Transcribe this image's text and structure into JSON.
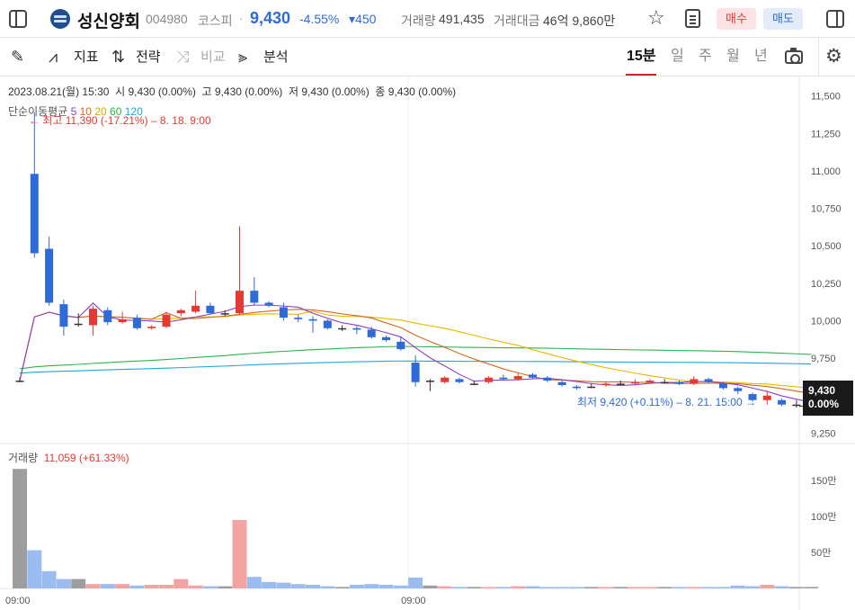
{
  "header": {
    "name": "성신양회",
    "code": "004980",
    "market": "코스피",
    "separator": "·",
    "price": "9,430",
    "change_pct": "-4.55%",
    "change_abs": "▾450",
    "volume_label": "거래량",
    "volume_value": "491,435",
    "amount_label": "거래대금",
    "amount_value": "46억 9,860만",
    "buy_label": "매수",
    "sell_label": "매도"
  },
  "toolbar": {
    "indicator_label": "지표",
    "strategy_label": "전략",
    "compare_label": "비교",
    "analysis_label": "분석",
    "periods": [
      "15분",
      "일",
      "주",
      "월",
      "년"
    ],
    "active_period": "15분"
  },
  "colors": {
    "up": "#e53935",
    "down": "#2e6bd6",
    "ma5": "#8e3ec7",
    "ma10": "#d2691e",
    "ma20": "#e6b800",
    "ma60": "#2db34a",
    "ma120": "#1fa6d6"
  },
  "chart_data": {
    "type": "candlestick",
    "info_line": "2023.08.21(월) 15:30  시 9,430 (0.00%)  고 9,430 (0.00%)  저 9,430 (0.00%)  종 9,430 (0.00%)",
    "ma_legend": {
      "label": "단순이동평균",
      "periods": [
        "5",
        "10",
        "20",
        "60",
        "120"
      ]
    },
    "high_annotation": "← 최고 11,390 (-17.21%) – 8. 18. 9:00",
    "low_annotation": "최저 9,420 (+0.11%) – 8. 21. 15:00 →",
    "price_axis": [
      "11,500",
      "11,250",
      "11,000",
      "10,750",
      "10,500",
      "10,250",
      "10,000",
      "9,750",
      "9,250"
    ],
    "ylim": [
      9180,
      11570
    ],
    "current_price": "9,430",
    "current_change": "0.00%",
    "volume_legend": {
      "label": "거래량",
      "value": "11,059 (+61.33%)"
    },
    "volume_axis": [
      "150만",
      "100만",
      "50만"
    ],
    "volume_axis_values": [
      1500000,
      1000000,
      500000
    ],
    "x_ticks": [
      {
        "index": 0,
        "label": "09:00"
      },
      {
        "index": 27,
        "label": "09:00"
      }
    ],
    "candles": [
      {
        "o": 9600,
        "h": 9620,
        "l": 9590,
        "c": 9600
      },
      {
        "o": 10980,
        "h": 11390,
        "l": 10420,
        "c": 10450
      },
      {
        "o": 10480,
        "h": 10560,
        "l": 10100,
        "c": 10120
      },
      {
        "o": 10110,
        "h": 10140,
        "l": 9900,
        "c": 9960
      },
      {
        "o": 9980,
        "h": 10050,
        "l": 9960,
        "c": 9980
      },
      {
        "o": 9970,
        "h": 10100,
        "l": 9900,
        "c": 10080
      },
      {
        "o": 10070,
        "h": 10090,
        "l": 9970,
        "c": 9990
      },
      {
        "o": 9990,
        "h": 10060,
        "l": 9980,
        "c": 10010
      },
      {
        "o": 10020,
        "h": 10040,
        "l": 9940,
        "c": 9950
      },
      {
        "o": 9950,
        "h": 9970,
        "l": 9940,
        "c": 9960
      },
      {
        "o": 9960,
        "h": 10060,
        "l": 9950,
        "c": 10040
      },
      {
        "o": 10050,
        "h": 10080,
        "l": 10030,
        "c": 10070
      },
      {
        "o": 10060,
        "h": 10200,
        "l": 10050,
        "c": 10100
      },
      {
        "o": 10100,
        "h": 10120,
        "l": 10040,
        "c": 10050
      },
      {
        "o": 10050,
        "h": 10070,
        "l": 10030,
        "c": 10050
      },
      {
        "o": 10050,
        "h": 10630,
        "l": 10040,
        "c": 10200
      },
      {
        "o": 10200,
        "h": 10290,
        "l": 10100,
        "c": 10120
      },
      {
        "o": 10120,
        "h": 10130,
        "l": 10090,
        "c": 10100
      },
      {
        "o": 10090,
        "h": 10120,
        "l": 10000,
        "c": 10020
      },
      {
        "o": 10020,
        "h": 10040,
        "l": 9990,
        "c": 10010
      },
      {
        "o": 10010,
        "h": 10030,
        "l": 9920,
        "c": 10000
      },
      {
        "o": 10000,
        "h": 10010,
        "l": 9940,
        "c": 9950
      },
      {
        "o": 9950,
        "h": 9970,
        "l": 9930,
        "c": 9950
      },
      {
        "o": 9950,
        "h": 9970,
        "l": 9910,
        "c": 9940
      },
      {
        "o": 9940,
        "h": 9960,
        "l": 9880,
        "c": 9890
      },
      {
        "o": 9890,
        "h": 9900,
        "l": 9860,
        "c": 9870
      },
      {
        "o": 9860,
        "h": 9890,
        "l": 9800,
        "c": 9810
      },
      {
        "o": 9720,
        "h": 9770,
        "l": 9560,
        "c": 9590
      },
      {
        "o": 9600,
        "h": 9610,
        "l": 9530,
        "c": 9600
      },
      {
        "o": 9590,
        "h": 9630,
        "l": 9580,
        "c": 9620
      },
      {
        "o": 9610,
        "h": 9620,
        "l": 9580,
        "c": 9590
      },
      {
        "o": 9580,
        "h": 9600,
        "l": 9570,
        "c": 9580
      },
      {
        "o": 9590,
        "h": 9630,
        "l": 9580,
        "c": 9620
      },
      {
        "o": 9620,
        "h": 9640,
        "l": 9600,
        "c": 9610
      },
      {
        "o": 9610,
        "h": 9650,
        "l": 9600,
        "c": 9630
      },
      {
        "o": 9640,
        "h": 9650,
        "l": 9610,
        "c": 9620
      },
      {
        "o": 9620,
        "h": 9630,
        "l": 9590,
        "c": 9600
      },
      {
        "o": 9590,
        "h": 9600,
        "l": 9560,
        "c": 9570
      },
      {
        "o": 9560,
        "h": 9570,
        "l": 9540,
        "c": 9550
      },
      {
        "o": 9560,
        "h": 9580,
        "l": 9550,
        "c": 9560
      },
      {
        "o": 9570,
        "h": 9590,
        "l": 9560,
        "c": 9580
      },
      {
        "o": 9580,
        "h": 9600,
        "l": 9570,
        "c": 9580
      },
      {
        "o": 9580,
        "h": 9610,
        "l": 9570,
        "c": 9590
      },
      {
        "o": 9590,
        "h": 9610,
        "l": 9580,
        "c": 9600
      },
      {
        "o": 9590,
        "h": 9610,
        "l": 9580,
        "c": 9590
      },
      {
        "o": 9590,
        "h": 9600,
        "l": 9570,
        "c": 9580
      },
      {
        "o": 9580,
        "h": 9630,
        "l": 9570,
        "c": 9610
      },
      {
        "o": 9610,
        "h": 9620,
        "l": 9580,
        "c": 9590
      },
      {
        "o": 9580,
        "h": 9590,
        "l": 9540,
        "c": 9550
      },
      {
        "o": 9550,
        "h": 9560,
        "l": 9510,
        "c": 9530
      },
      {
        "o": 9510,
        "h": 9520,
        "l": 9460,
        "c": 9470
      },
      {
        "o": 9470,
        "h": 9530,
        "l": 9440,
        "c": 9500
      },
      {
        "o": 9470,
        "h": 9480,
        "l": 9430,
        "c": 9440
      },
      {
        "o": 9440,
        "h": 9470,
        "l": 9420,
        "c": 9440
      },
      {
        "o": 9430,
        "h": 9430,
        "l": 9430,
        "c": 9430
      }
    ],
    "volume": [
      1660000,
      530000,
      240000,
      130000,
      130000,
      60000,
      60000,
      60000,
      40000,
      50000,
      50000,
      130000,
      40000,
      30000,
      30000,
      950000,
      160000,
      90000,
      80000,
      60000,
      50000,
      30000,
      20000,
      50000,
      60000,
      50000,
      40000,
      150000,
      40000,
      30000,
      20000,
      20000,
      20000,
      20000,
      30000,
      30000,
      20000,
      20000,
      20000,
      20000,
      20000,
      20000,
      20000,
      20000,
      20000,
      20000,
      20000,
      20000,
      20000,
      40000,
      30000,
      50000,
      30000,
      20000,
      20000
    ],
    "vol_ylim": [
      0,
      1800000
    ]
  }
}
